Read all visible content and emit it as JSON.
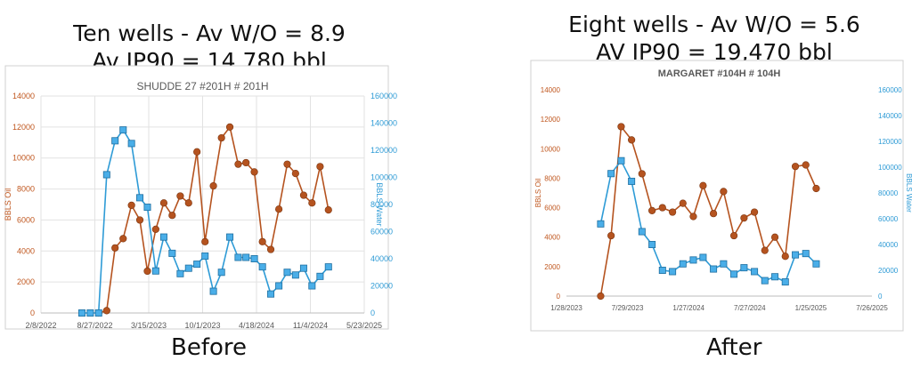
{
  "headings": {
    "left": {
      "line1": "Ten wells - Av W/O = 8.9",
      "line2": "Av IP90 = 14,780 bbl"
    },
    "right": {
      "line1": "Eight wells - Av W/O = 5.6",
      "line2": "AV IP90 = 19,470 bbl"
    }
  },
  "captions": {
    "left": "Before",
    "right": "After"
  },
  "colors": {
    "oil": "#b5531f",
    "water": "#2e9bd6",
    "water_fill": "#4aaee8",
    "oil_axis": "#c0571f",
    "water_axis": "#2e9bd6"
  },
  "chart_data": [
    {
      "type": "line",
      "title": "SHUDDE 27 #201H  # 201H",
      "ylabel": "BBLS Oil",
      "y2label": "BBLS Water",
      "ylim": [
        0,
        14000
      ],
      "y2lim": [
        0,
        160000
      ],
      "yticks": [
        0,
        2000,
        4000,
        6000,
        8000,
        10000,
        12000,
        14000
      ],
      "y2ticks": [
        0,
        20000,
        40000,
        60000,
        80000,
        100000,
        120000,
        140000,
        160000
      ],
      "xlim": [
        "2022-02-08",
        "2025-05-23"
      ],
      "xticks": [
        "2/8/2022",
        "8/27/2022",
        "3/15/2023",
        "10/1/2023",
        "4/18/2024",
        "11/4/2024",
        "5/23/2025"
      ],
      "grid": true,
      "series": [
        {
          "name": "BBLS Oil",
          "axis": "left",
          "marker": "circle",
          "x": [
            "2022-09-10",
            "2022-10-10",
            "2022-11-10",
            "2022-12-10",
            "2023-01-10",
            "2023-02-10",
            "2023-03-10",
            "2023-04-10",
            "2023-05-10",
            "2023-06-10",
            "2023-07-10",
            "2023-08-10",
            "2023-09-10",
            "2023-10-10",
            "2023-11-10",
            "2023-12-10",
            "2024-01-10",
            "2024-02-10",
            "2024-03-10",
            "2024-04-10",
            "2024-05-10",
            "2024-06-10",
            "2024-07-10",
            "2024-08-10",
            "2024-09-10",
            "2024-10-10",
            "2024-11-10",
            "2024-12-10",
            "2025-01-10",
            "2025-02-10"
          ],
          "values": [
            0,
            150,
            4200,
            4800,
            6950,
            6000,
            2700,
            5400,
            7100,
            6300,
            7550,
            7100,
            10400,
            4600,
            8200,
            11300,
            12000,
            9600,
            9700,
            9100,
            4600,
            4100,
            6700,
            9600,
            9000,
            7600,
            7100,
            9450,
            6650,
            null
          ]
        },
        {
          "name": "BBLS Water",
          "axis": "right",
          "marker": "square",
          "x": [
            "2022-07-10",
            "2022-08-10",
            "2022-09-10",
            "2022-10-10",
            "2022-11-10",
            "2022-12-10",
            "2023-01-10",
            "2023-02-10",
            "2023-03-10",
            "2023-04-10",
            "2023-05-10",
            "2023-06-10",
            "2023-07-10",
            "2023-08-10",
            "2023-09-10",
            "2023-10-10",
            "2023-11-10",
            "2023-12-10",
            "2024-01-10",
            "2024-02-10",
            "2024-03-10",
            "2024-04-10",
            "2024-05-10",
            "2024-06-10",
            "2024-07-10",
            "2024-08-10",
            "2024-09-10",
            "2024-10-10",
            "2024-11-10",
            "2024-12-10",
            "2025-01-10"
          ],
          "values": [
            0,
            0,
            0,
            102000,
            127000,
            135000,
            125000,
            85000,
            78000,
            31000,
            56000,
            44000,
            29000,
            33000,
            36000,
            42000,
            16000,
            30000,
            56000,
            41000,
            41000,
            40000,
            34000,
            14000,
            20000,
            30000,
            28000,
            33000,
            20000,
            27000,
            34000
          ]
        }
      ]
    },
    {
      "type": "line",
      "title": "MARGARET #104H  # 104H",
      "ylabel": "BBLS Oil",
      "y2label": "BBLS Water",
      "ylim": [
        0,
        14000
      ],
      "y2lim": [
        0,
        160000
      ],
      "yticks": [
        0,
        2000,
        4000,
        6000,
        8000,
        10000,
        12000,
        14000
      ],
      "y2ticks": [
        0,
        20000,
        40000,
        60000,
        80000,
        100000,
        120000,
        140000,
        160000
      ],
      "xlim": [
        "2023-01-28",
        "2025-07-26"
      ],
      "xticks": [
        "1/28/2023",
        "7/29/2023",
        "1/27/2024",
        "7/27/2024",
        "1/25/2025",
        "7/26/2025"
      ],
      "grid": false,
      "series": [
        {
          "name": "BBLS Oil",
          "axis": "left",
          "marker": "circle",
          "x": [
            "2023-05-10",
            "2023-06-10",
            "2023-07-10",
            "2023-08-10",
            "2023-09-10",
            "2023-10-10",
            "2023-11-10",
            "2023-12-10",
            "2024-01-10",
            "2024-02-10",
            "2024-03-10",
            "2024-04-10",
            "2024-05-10",
            "2024-06-10",
            "2024-07-10",
            "2024-08-10",
            "2024-09-10",
            "2024-10-10",
            "2024-11-10",
            "2024-12-10",
            "2025-01-10",
            "2025-02-10"
          ],
          "values": [
            0,
            4100,
            11500,
            10600,
            8300,
            5800,
            6000,
            5700,
            6300,
            5400,
            7500,
            5600,
            7100,
            4100,
            5300,
            5700,
            3100,
            4000,
            2700,
            8800,
            8900,
            7300
          ]
        },
        {
          "name": "BBLS Water",
          "axis": "right",
          "marker": "square",
          "x": [
            "2023-05-10",
            "2023-06-10",
            "2023-07-10",
            "2023-08-10",
            "2023-09-10",
            "2023-10-10",
            "2023-11-10",
            "2023-12-10",
            "2024-01-10",
            "2024-02-10",
            "2024-03-10",
            "2024-04-10",
            "2024-05-10",
            "2024-06-10",
            "2024-07-10",
            "2024-08-10",
            "2024-09-10",
            "2024-10-10",
            "2024-11-10",
            "2024-12-10",
            "2025-01-10",
            "2025-02-10"
          ],
          "values": [
            56000,
            95000,
            105000,
            89000,
            50000,
            40000,
            20000,
            19000,
            25000,
            28000,
            30000,
            21000,
            25000,
            17000,
            22000,
            19000,
            12000,
            15000,
            11000,
            32000,
            33000,
            25000
          ]
        }
      ]
    }
  ]
}
